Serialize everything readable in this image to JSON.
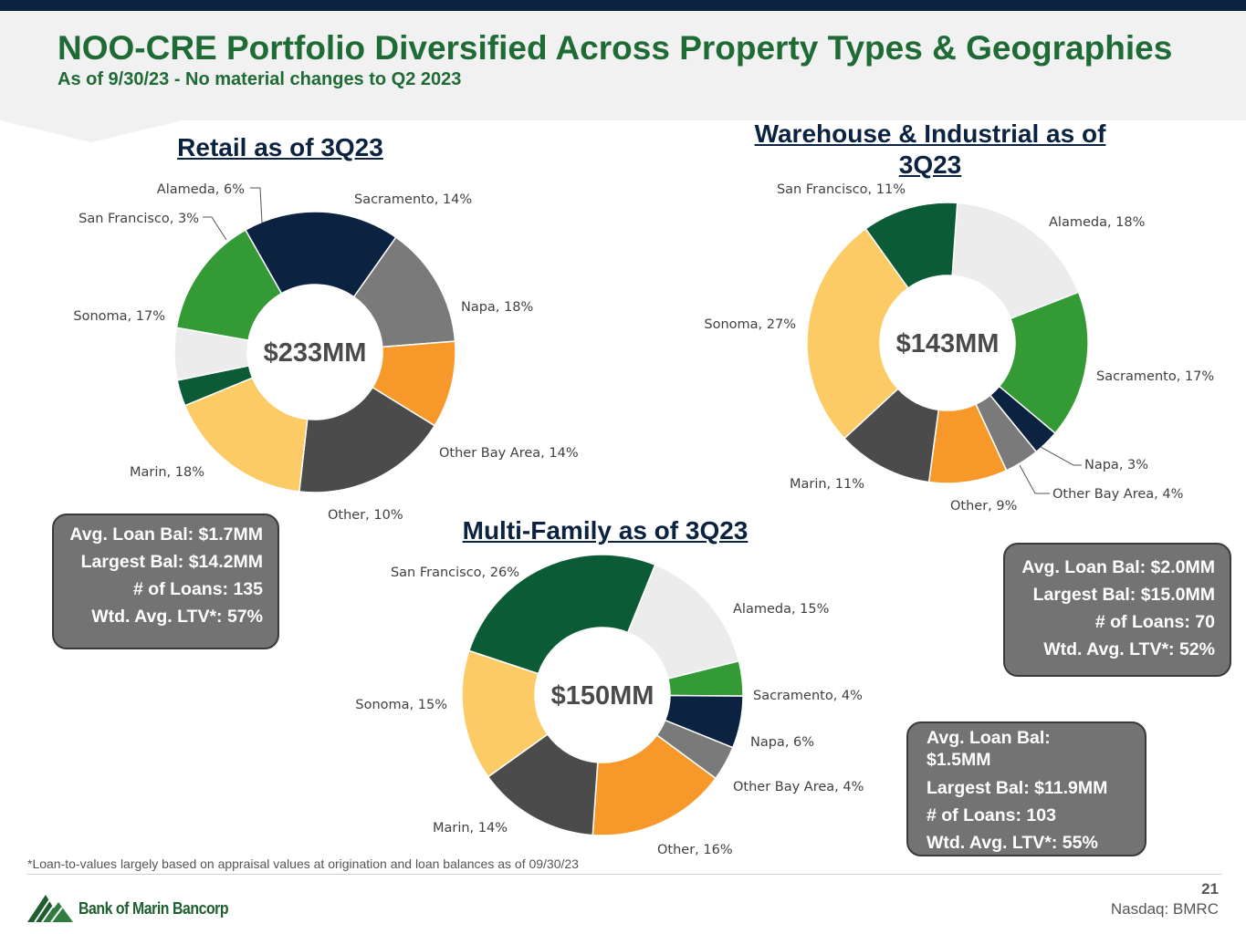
{
  "header": {
    "title": "NOO-CRE Portfolio Diversified Across Property Types & Geographies",
    "subtitle": "As of 9/30/23 - No material changes to Q2 2023"
  },
  "colors": {
    "Sacramento": "#339a35",
    "Napa": "#0b2341",
    "Other Bay Area": "#7a7a7a",
    "Other": "#f7992a",
    "Marin": "#4b4b4b",
    "Sonoma": "#fccb66",
    "San Francisco": "#0b5c36",
    "Alameda": "#ececec"
  },
  "chart_data": [
    {
      "type": "pie",
      "variant": "donut",
      "title": "Retail as of 3Q23",
      "center_label": "$233MM",
      "categories": [
        "Sacramento",
        "Napa",
        "Other Bay Area",
        "Other",
        "Marin",
        "Sonoma",
        "San Francisco",
        "Alameda"
      ],
      "values": [
        14,
        18,
        14,
        10,
        18,
        17,
        3,
        6
      ],
      "labels": [
        "Sacramento, 14%",
        "Napa, 18%",
        "Other Bay Area, 14%",
        "Other, 10%",
        "Marin, 18%",
        "Sonoma, 17%",
        "San Francisco, 3%",
        "Alameda, 6%"
      ]
    },
    {
      "type": "pie",
      "variant": "donut",
      "title": "Warehouse & Industrial as of 3Q23",
      "center_label": "$143MM",
      "categories": [
        "Alameda",
        "Sacramento",
        "Napa",
        "Other Bay Area",
        "Other",
        "Marin",
        "Sonoma",
        "San Francisco"
      ],
      "values": [
        18,
        17,
        3,
        4,
        9,
        11,
        27,
        11
      ],
      "labels": [
        "Alameda, 18%",
        "Sacramento, 17%",
        "Napa, 3%",
        "Other Bay Area, 4%",
        "Other, 9%",
        "Marin, 11%",
        "Sonoma, 27%",
        "San Francisco, 11%"
      ]
    },
    {
      "type": "pie",
      "variant": "donut",
      "title": "Multi-Family as of 3Q23",
      "center_label": "$150MM",
      "categories": [
        "Alameda",
        "Sacramento",
        "Napa",
        "Other Bay Area",
        "Other",
        "Marin",
        "Sonoma",
        "San Francisco"
      ],
      "values": [
        15,
        4,
        6,
        4,
        16,
        14,
        15,
        26
      ],
      "labels": [
        "Alameda, 15%",
        "Sacramento, 4%",
        "Napa, 6%",
        "Other Bay Area, 4%",
        "Other, 16%",
        "Marin, 14%",
        "Sonoma, 15%",
        "San Francisco, 26%"
      ]
    }
  ],
  "stats": {
    "retail": [
      "Avg. Loan Bal: $1.7MM",
      "Largest Bal: $14.2MM",
      "# of Loans: 135",
      "Wtd. Avg. LTV*: 57%"
    ],
    "warehouse": [
      "Avg. Loan Bal: $2.0MM",
      "Largest Bal: $15.0MM",
      "# of Loans: 70",
      "Wtd. Avg. LTV*: 52%"
    ],
    "multifamily": [
      "Avg. Loan Bal: $1.5MM",
      "Largest Bal: $11.9MM",
      "# of Loans: 103",
      "Wtd. Avg. LTV*: 55%"
    ]
  },
  "footer": {
    "footnote": "*Loan-to-values largely based on appraisal values at origination and loan balances as of 09/30/23",
    "page_number": "21",
    "ticker": "Nasdaq: BMRC",
    "company": "Bank of Marin Bancorp"
  }
}
